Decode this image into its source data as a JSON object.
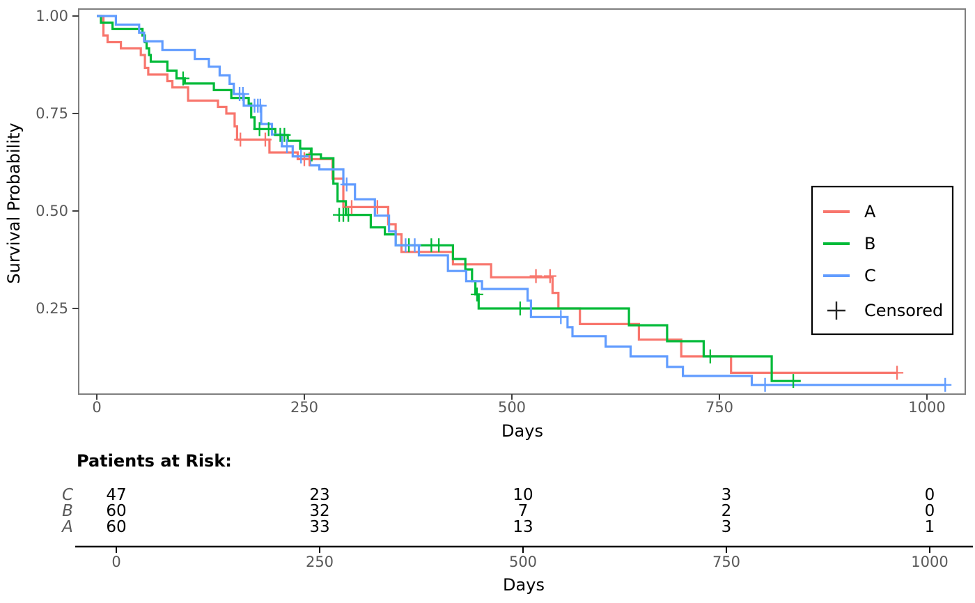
{
  "figure": {
    "y_axis": {
      "title": "Survival Probability",
      "tick_labels": [
        "1.00",
        "0.75",
        "0.50",
        "0.25"
      ],
      "tick_values": [
        1.0,
        0.75,
        0.5,
        0.25
      ]
    },
    "x_axis": {
      "title": "Days",
      "tick_labels": [
        "0",
        "250",
        "500",
        "750",
        "1000"
      ],
      "tick_values": [
        0,
        250,
        500,
        750,
        1000
      ]
    },
    "legend": {
      "entries": [
        {
          "label": "A",
          "type": "line",
          "color": "#F8766D"
        },
        {
          "label": "B",
          "type": "line",
          "color": "#00BA38"
        },
        {
          "label": "C",
          "type": "line",
          "color": "#619CFF"
        },
        {
          "label": "Censored",
          "type": "plus-marker",
          "color": "#262626"
        }
      ]
    },
    "risk_table": {
      "title": "Patients at Risk:",
      "axis_title": "Days",
      "tick_labels": [
        "0",
        "250",
        "500",
        "750",
        "1000"
      ],
      "tick_values": [
        0,
        250,
        500,
        750,
        1000
      ],
      "rows": [
        {
          "label": "C",
          "values": [
            "47",
            "23",
            "10",
            "3",
            "0"
          ]
        },
        {
          "label": "B",
          "values": [
            "60",
            "32",
            "7",
            "2",
            "0"
          ]
        },
        {
          "label": "A",
          "values": [
            "60",
            "33",
            "13",
            "3",
            "1"
          ]
        }
      ]
    },
    "colors": {
      "panel_border": "#7F7F7F",
      "tick_mark": "#404040",
      "tick_text": "#595959",
      "risk_axis_line": "#000000"
    }
  },
  "chart_data": {
    "type": "line",
    "subtype": "kaplan-meier-step",
    "title": "",
    "xlabel": "Days",
    "ylabel": "Survival Probability",
    "xlim": [
      -22,
      1046
    ],
    "ylim": [
      0.03,
      1.02
    ],
    "x_ticks": [
      0,
      250,
      500,
      750,
      1000
    ],
    "y_ticks": [
      1.0,
      0.75,
      0.5,
      0.25
    ],
    "grid": false,
    "legend_position": "right",
    "series": [
      {
        "name": "A",
        "color": "#F8766D",
        "n_start": 60,
        "end_day": 964,
        "steps": [
          [
            0,
            1.0
          ],
          [
            8,
            0.95
          ],
          [
            13,
            0.933
          ],
          [
            29,
            0.917
          ],
          [
            53,
            0.9
          ],
          [
            58,
            0.867
          ],
          [
            62,
            0.85
          ],
          [
            85,
            0.833
          ],
          [
            91,
            0.817
          ],
          [
            110,
            0.783
          ],
          [
            146,
            0.767
          ],
          [
            156,
            0.75
          ],
          [
            166,
            0.717
          ],
          [
            169,
            0.683
          ],
          [
            208,
            0.65
          ],
          [
            242,
            0.633
          ],
          [
            284,
            0.583
          ],
          [
            297,
            0.51
          ],
          [
            351,
            0.466
          ],
          [
            360,
            0.44
          ],
          [
            367,
            0.395
          ],
          [
            429,
            0.363
          ],
          [
            475,
            0.33
          ],
          [
            549,
            0.29
          ],
          [
            556,
            0.25
          ],
          [
            582,
            0.21
          ],
          [
            653,
            0.17
          ],
          [
            704,
            0.127
          ],
          [
            764,
            0.085
          ]
        ],
        "censored": [
          [
            173,
            0.683
          ],
          [
            203,
            0.683
          ],
          [
            250,
            0.633
          ],
          [
            256,
            0.633
          ],
          [
            307,
            0.51
          ],
          [
            338,
            0.51
          ],
          [
            529,
            0.333
          ],
          [
            546,
            0.333
          ],
          [
            964,
            0.085
          ]
        ]
      },
      {
        "name": "B",
        "color": "#00BA38",
        "n_start": 60,
        "end_day": 848,
        "steps": [
          [
            0,
            1.0
          ],
          [
            5,
            0.983
          ],
          [
            19,
            0.967
          ],
          [
            55,
            0.95
          ],
          [
            58,
            0.933
          ],
          [
            60,
            0.917
          ],
          [
            63,
            0.9
          ],
          [
            65,
            0.883
          ],
          [
            85,
            0.86
          ],
          [
            96,
            0.84
          ],
          [
            106,
            0.827
          ],
          [
            141,
            0.81
          ],
          [
            162,
            0.79
          ],
          [
            183,
            0.775
          ],
          [
            186,
            0.74
          ],
          [
            190,
            0.71
          ],
          [
            215,
            0.695
          ],
          [
            230,
            0.68
          ],
          [
            245,
            0.66
          ],
          [
            258,
            0.645
          ],
          [
            270,
            0.635
          ],
          [
            285,
            0.57
          ],
          [
            290,
            0.525
          ],
          [
            300,
            0.49
          ],
          [
            330,
            0.458
          ],
          [
            347,
            0.44
          ],
          [
            360,
            0.412
          ],
          [
            429,
            0.377
          ],
          [
            444,
            0.35
          ],
          [
            452,
            0.32
          ],
          [
            456,
            0.286
          ],
          [
            460,
            0.25
          ],
          [
            641,
            0.207
          ],
          [
            687,
            0.166
          ],
          [
            731,
            0.127
          ],
          [
            813,
            0.064
          ]
        ],
        "censored": [
          [
            104,
            0.84
          ],
          [
            196,
            0.71
          ],
          [
            207,
            0.71
          ],
          [
            221,
            0.695
          ],
          [
            226,
            0.695
          ],
          [
            259,
            0.645
          ],
          [
            292,
            0.49
          ],
          [
            297,
            0.49
          ],
          [
            303,
            0.49
          ],
          [
            376,
            0.412
          ],
          [
            403,
            0.412
          ],
          [
            412,
            0.412
          ],
          [
            458,
            0.286
          ],
          [
            510,
            0.25
          ],
          [
            739,
            0.127
          ],
          [
            839,
            0.064
          ]
        ]
      },
      {
        "name": "C",
        "color": "#619CFF",
        "n_start": 47,
        "end_day": 1022,
        "steps": [
          [
            0,
            1.0
          ],
          [
            23,
            0.978
          ],
          [
            51,
            0.957
          ],
          [
            57,
            0.935
          ],
          [
            79,
            0.913
          ],
          [
            118,
            0.89
          ],
          [
            135,
            0.87
          ],
          [
            148,
            0.848
          ],
          [
            160,
            0.826
          ],
          [
            165,
            0.8
          ],
          [
            177,
            0.77
          ],
          [
            198,
            0.723
          ],
          [
            211,
            0.696
          ],
          [
            223,
            0.666
          ],
          [
            236,
            0.64
          ],
          [
            257,
            0.617
          ],
          [
            268,
            0.607
          ],
          [
            297,
            0.568
          ],
          [
            311,
            0.53
          ],
          [
            335,
            0.488
          ],
          [
            352,
            0.448
          ],
          [
            360,
            0.412
          ],
          [
            388,
            0.386
          ],
          [
            423,
            0.346
          ],
          [
            445,
            0.32
          ],
          [
            464,
            0.3
          ],
          [
            519,
            0.27
          ],
          [
            523,
            0.228
          ],
          [
            567,
            0.202
          ],
          [
            573,
            0.179
          ],
          [
            613,
            0.152
          ],
          [
            643,
            0.127
          ],
          [
            687,
            0.1
          ],
          [
            706,
            0.077
          ],
          [
            789,
            0.054
          ]
        ],
        "censored": [
          [
            172,
            0.8
          ],
          [
            176,
            0.8
          ],
          [
            190,
            0.77
          ],
          [
            194,
            0.77
          ],
          [
            197,
            0.77
          ],
          [
            229,
            0.666
          ],
          [
            246,
            0.64
          ],
          [
            301,
            0.568
          ],
          [
            372,
            0.412
          ],
          [
            383,
            0.412
          ],
          [
            559,
            0.228
          ],
          [
            805,
            0.054
          ],
          [
            1022,
            0.054
          ]
        ]
      }
    ],
    "risk_table": {
      "title": "Patients at Risk:",
      "time_points": [
        0,
        250,
        500,
        750,
        1000
      ],
      "rows": [
        {
          "group": "C",
          "at_risk": [
            47,
            23,
            10,
            3,
            0
          ]
        },
        {
          "group": "B",
          "at_risk": [
            60,
            32,
            7,
            2,
            0
          ]
        },
        {
          "group": "A",
          "at_risk": [
            60,
            33,
            13,
            3,
            1
          ]
        }
      ]
    }
  }
}
